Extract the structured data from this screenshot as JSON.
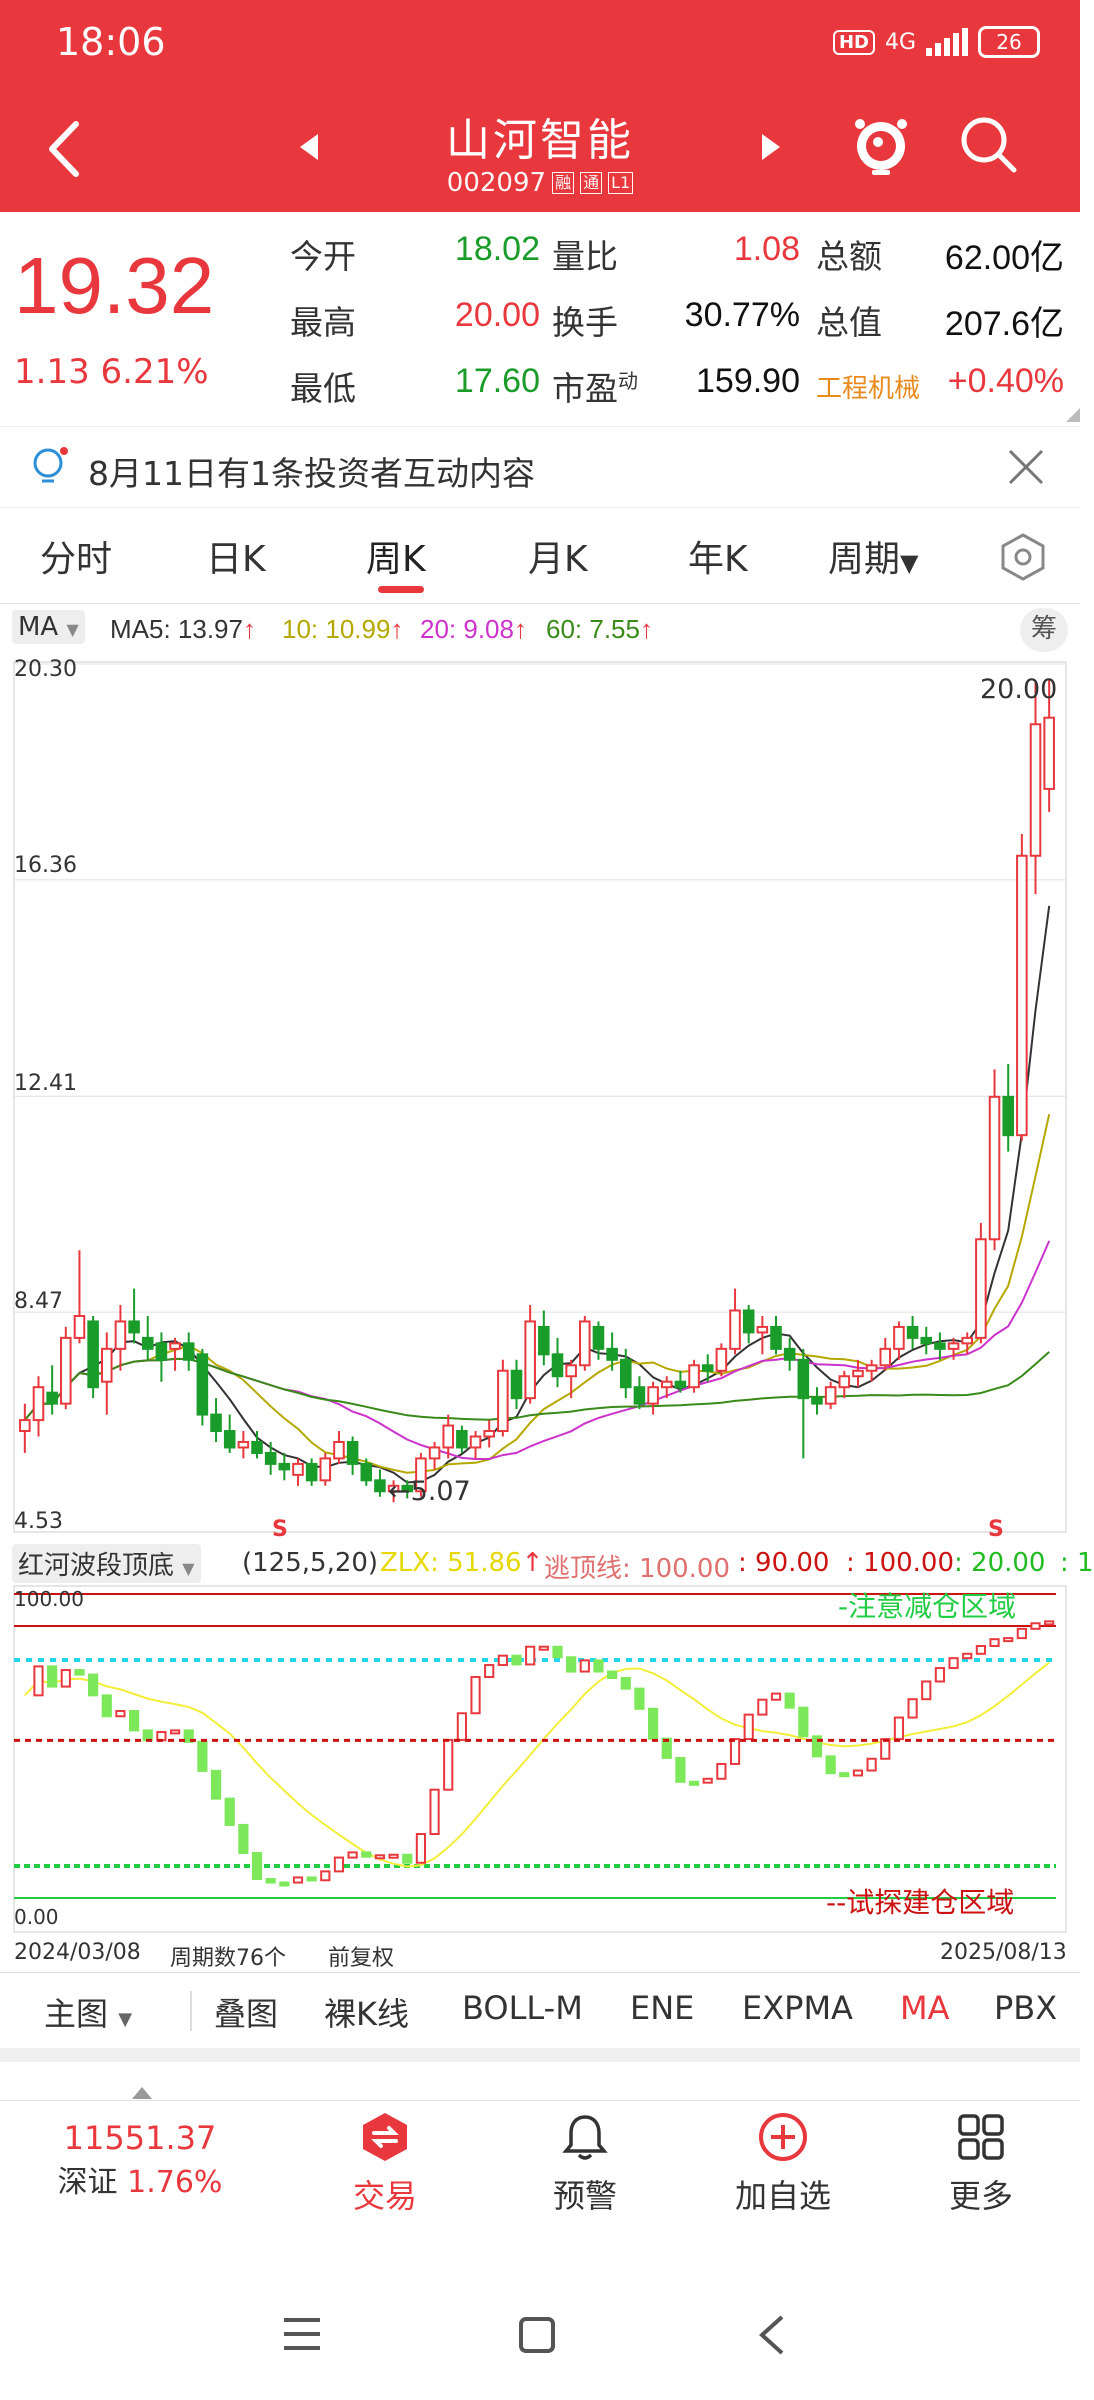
{
  "status_bar": {
    "time": "18:06",
    "hd": "HD",
    "network": "4G",
    "battery": "26"
  },
  "nav": {
    "stock_name": "山河智能",
    "stock_code": "002097",
    "tag1": "融",
    "tag2": "通",
    "tag3": "L1"
  },
  "quote": {
    "price": "19.32",
    "change": "1.13  6.21%",
    "rows": [
      {
        "l1": "今开",
        "v1": "18.02",
        "l2": "量比",
        "v2": "1.08",
        "l3": "总额",
        "v3": "62.00亿"
      },
      {
        "l1": "最高",
        "v1": "20.00",
        "l2": "换手",
        "v2": "30.77%",
        "l3": "总值",
        "v3": "207.6亿"
      },
      {
        "l1": "最低",
        "v1": "17.60",
        "l2": "市盈",
        "l2_sup": "动",
        "v2": "159.90",
        "l3": "工程机械",
        "v3": "+0.40%"
      }
    ]
  },
  "notice": {
    "text": "8月11日有1条投资者互动内容"
  },
  "tabs": [
    "分时",
    "日K",
    "周K",
    "月K",
    "年K",
    "周期"
  ],
  "active_tab": "周K",
  "ma_bar": {
    "select": "MA",
    "ma5": "MA5: 13.97",
    "ma10": "10: 10.99",
    "ma20": "20: 9.08",
    "ma60": "60: 7.55",
    "chou": "筹",
    "colors": {
      "ma5": "#333333",
      "ma10": "#b5a800",
      "ma20": "#cc33cc",
      "ma60": "#3a8a1a"
    }
  },
  "main_chart": {
    "y_ticks": [
      "20.30",
      "16.36",
      "12.41",
      "8.47",
      "4.53"
    ],
    "high_label": "20.00",
    "low_label": "5.07",
    "s_marker": "S",
    "date_start": "2024/03/08",
    "period_count": "周期数76个",
    "adjust": "前复权",
    "date_end": "2025/08/13"
  },
  "chart_data": {
    "type": "candlestick",
    "ylim": [
      4.53,
      20.3
    ],
    "ohlc": [
      [
        6.3,
        6.8,
        5.9,
        6.5
      ],
      [
        6.5,
        7.3,
        6.2,
        7.1
      ],
      [
        7.0,
        7.5,
        6.6,
        6.8
      ],
      [
        6.8,
        8.2,
        6.7,
        8.0
      ],
      [
        8.0,
        9.6,
        7.9,
        8.4
      ],
      [
        8.3,
        8.4,
        6.9,
        7.1
      ],
      [
        7.2,
        8.1,
        6.6,
        7.8
      ],
      [
        7.8,
        8.6,
        7.4,
        8.3
      ],
      [
        8.3,
        8.9,
        7.9,
        8.1
      ],
      [
        8.0,
        8.4,
        7.6,
        7.8
      ],
      [
        7.9,
        8.1,
        7.2,
        7.6
      ],
      [
        7.8,
        8.0,
        7.4,
        7.9
      ],
      [
        7.9,
        8.1,
        7.4,
        7.6
      ],
      [
        7.7,
        7.8,
        6.4,
        6.6
      ],
      [
        6.6,
        6.9,
        6.1,
        6.3
      ],
      [
        6.3,
        6.6,
        5.9,
        6.0
      ],
      [
        6.0,
        6.3,
        5.8,
        6.1
      ],
      [
        6.1,
        6.3,
        5.8,
        5.9
      ],
      [
        5.9,
        6.1,
        5.5,
        5.7
      ],
      [
        5.7,
        5.9,
        5.4,
        5.6
      ],
      [
        5.5,
        5.8,
        5.3,
        5.7
      ],
      [
        5.7,
        5.8,
        5.3,
        5.4
      ],
      [
        5.4,
        5.9,
        5.3,
        5.8
      ],
      [
        5.8,
        6.3,
        5.7,
        6.1
      ],
      [
        6.1,
        6.2,
        5.5,
        5.7
      ],
      [
        5.7,
        5.8,
        5.3,
        5.4
      ],
      [
        5.4,
        5.6,
        5.1,
        5.2
      ],
      [
        5.2,
        5.4,
        5.0,
        5.3
      ],
      [
        5.3,
        5.4,
        5.07,
        5.2
      ],
      [
        5.2,
        5.9,
        5.1,
        5.8
      ],
      [
        5.8,
        6.1,
        5.6,
        6.0
      ],
      [
        6.0,
        6.6,
        5.8,
        6.4
      ],
      [
        6.3,
        6.4,
        5.9,
        6.0
      ],
      [
        6.0,
        6.3,
        5.8,
        6.2
      ],
      [
        6.2,
        6.5,
        6.0,
        6.3
      ],
      [
        6.3,
        7.6,
        6.2,
        7.4
      ],
      [
        7.4,
        7.6,
        6.7,
        6.9
      ],
      [
        6.9,
        8.6,
        6.8,
        8.3
      ],
      [
        8.2,
        8.5,
        7.5,
        7.7
      ],
      [
        7.7,
        8.0,
        7.1,
        7.3
      ],
      [
        7.3,
        7.6,
        6.9,
        7.5
      ],
      [
        7.5,
        8.4,
        7.4,
        8.3
      ],
      [
        8.2,
        8.3,
        7.6,
        7.8
      ],
      [
        7.8,
        8.1,
        7.4,
        7.6
      ],
      [
        7.6,
        7.8,
        6.9,
        7.1
      ],
      [
        7.1,
        7.3,
        6.7,
        6.8
      ],
      [
        6.8,
        7.2,
        6.6,
        7.1
      ],
      [
        7.1,
        7.3,
        6.9,
        7.2
      ],
      [
        7.2,
        7.4,
        7.0,
        7.1
      ],
      [
        7.1,
        7.6,
        7.0,
        7.5
      ],
      [
        7.5,
        7.7,
        7.2,
        7.4
      ],
      [
        7.4,
        7.9,
        7.3,
        7.8
      ],
      [
        7.8,
        8.9,
        7.7,
        8.5
      ],
      [
        8.5,
        8.6,
        7.9,
        8.1
      ],
      [
        8.1,
        8.4,
        7.7,
        8.2
      ],
      [
        8.2,
        8.4,
        7.7,
        7.8
      ],
      [
        7.8,
        8.0,
        7.4,
        7.6
      ],
      [
        7.6,
        7.8,
        5.8,
        6.9
      ],
      [
        6.9,
        7.1,
        6.6,
        6.8
      ],
      [
        6.8,
        7.2,
        6.7,
        7.1
      ],
      [
        7.1,
        7.4,
        6.9,
        7.3
      ],
      [
        7.3,
        7.6,
        7.1,
        7.4
      ],
      [
        7.4,
        7.6,
        7.2,
        7.5
      ],
      [
        7.5,
        8.0,
        7.4,
        7.8
      ],
      [
        7.8,
        8.3,
        7.6,
        8.2
      ],
      [
        8.2,
        8.4,
        7.8,
        8.0
      ],
      [
        8.0,
        8.2,
        7.7,
        7.9
      ],
      [
        7.9,
        8.1,
        7.6,
        7.8
      ],
      [
        7.8,
        8.0,
        7.6,
        7.9
      ],
      [
        7.9,
        8.1,
        7.7,
        8.0
      ],
      [
        8.0,
        10.1,
        7.9,
        9.8
      ],
      [
        9.8,
        12.9,
        9.6,
        12.4
      ],
      [
        12.4,
        13.0,
        11.4,
        11.7
      ],
      [
        11.7,
        17.2,
        11.6,
        16.8
      ],
      [
        16.8,
        20.0,
        16.1,
        19.2
      ],
      [
        18.02,
        20.0,
        17.6,
        19.32
      ]
    ]
  },
  "indicator": {
    "select": "红河波段顶底",
    "params": "(125,5,20)",
    "zlx": "ZLX: 51.86",
    "escape_line": "逃顶线: 100.00",
    "v90": ": 90.00",
    "v100": ": 100.00",
    "v20": ": 20.00",
    "v_tail": ": 1",
    "top_label": "100.00",
    "bottom_label": "0.00",
    "reduce_zone": "-注意减仓区域",
    "build_zone": "--试探建仓区域"
  },
  "toolbar": {
    "main": "主图",
    "items": [
      "叠图",
      "裸K线",
      "BOLL-M",
      "ENE",
      "EXPMA",
      "MA",
      "PBX"
    ]
  },
  "bottom_nav": {
    "index_value": "11551.37",
    "index_name": "深证",
    "index_change": "1.76%",
    "trade": "交易",
    "alert": "预警",
    "add": "加自选",
    "more": "更多"
  }
}
